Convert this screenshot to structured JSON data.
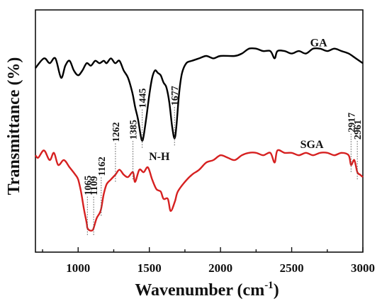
{
  "chart_data": {
    "type": "line",
    "xlabel": "Wavenumber (cm",
    "xlabel_sup": "-1",
    "xlabel_close": ")",
    "ylabel": "Transmittance (%)",
    "xlim": [
      700,
      3000
    ],
    "ylim": [
      0,
      100
    ],
    "y_tick_labels_shown": false,
    "grid": false,
    "xticks": [
      {
        "value": 1000,
        "label": "1000"
      },
      {
        "value": 1500,
        "label": "1500"
      },
      {
        "value": 2000,
        "label": "2000"
      },
      {
        "value": 2500,
        "label": "2500"
      },
      {
        "value": 3000,
        "label": "3000"
      }
    ],
    "series": [
      {
        "name": "GA",
        "color": "#000000",
        "x": [
          700,
          760,
          800,
          840,
          880,
          910,
          940,
          970,
          1000,
          1030,
          1060,
          1090,
          1120,
          1150,
          1180,
          1200,
          1230,
          1260,
          1290,
          1320,
          1350,
          1380,
          1400,
          1420,
          1440,
          1450,
          1460,
          1480,
          1500,
          1520,
          1540,
          1560,
          1580,
          1600,
          1620,
          1640,
          1660,
          1677,
          1690,
          1710,
          1730,
          1760,
          1800,
          1850,
          1900,
          1950,
          2000,
          2100,
          2150,
          2200,
          2250,
          2300,
          2350,
          2380,
          2400,
          2450,
          2500,
          2550,
          2600,
          2650,
          2700,
          2750,
          2800,
          2850,
          2900,
          2950,
          3000
        ],
        "y": [
          76,
          80,
          78,
          80,
          72,
          77,
          79,
          75,
          73,
          75,
          78,
          77,
          79,
          78,
          79,
          78,
          80,
          78,
          79,
          75,
          72,
          66,
          60,
          55,
          48,
          46,
          48,
          56,
          65,
          72,
          75,
          74,
          73,
          70,
          68,
          62,
          52,
          47,
          52,
          66,
          74,
          78,
          79,
          80,
          81,
          80,
          81,
          81,
          82,
          84,
          84,
          83,
          83,
          80,
          83,
          83,
          82,
          83,
          82,
          84,
          84,
          83,
          84,
          83,
          82,
          80,
          78
        ]
      },
      {
        "name": "SGA",
        "color": "#d62020",
        "x": [
          700,
          720,
          760,
          800,
          830,
          860,
          900,
          940,
          980,
          1000,
          1020,
          1040,
          1060,
          1065,
          1080,
          1100,
          1109,
          1130,
          1150,
          1162,
          1180,
          1200,
          1230,
          1262,
          1290,
          1320,
          1350,
          1385,
          1400,
          1430,
          1460,
          1490,
          1520,
          1550,
          1580,
          1600,
          1630,
          1650,
          1680,
          1700,
          1750,
          1800,
          1850,
          1900,
          1950,
          2000,
          2050,
          2100,
          2150,
          2200,
          2250,
          2300,
          2350,
          2380,
          2400,
          2450,
          2500,
          2550,
          2600,
          2650,
          2700,
          2750,
          2800,
          2850,
          2900,
          2917,
          2940,
          2961,
          2980,
          3000
        ],
        "y": [
          40,
          39,
          42,
          38,
          41,
          36,
          38,
          35,
          32,
          30,
          25,
          18,
          12,
          10,
          9,
          9,
          10,
          14,
          16,
          18,
          24,
          28,
          30,
          32,
          34,
          32,
          31,
          33,
          29,
          34,
          33,
          35,
          30,
          26,
          25,
          22,
          22,
          17,
          21,
          25,
          29,
          32,
          34,
          37,
          38,
          40,
          39,
          38,
          40,
          41,
          41,
          40,
          41,
          37,
          42,
          41,
          41,
          40,
          41,
          40,
          41,
          41,
          40,
          41,
          40,
          36,
          38,
          33,
          32,
          31
        ]
      }
    ],
    "series_labels": [
      {
        "text": "GA",
        "x": 2630,
        "y": 85
      },
      {
        "text": "SGA",
        "x": 2560,
        "y": 43
      }
    ],
    "annotations": [
      {
        "text": "1445",
        "x": 1450,
        "series": 0,
        "y_at": 46
      },
      {
        "text": "1677",
        "x": 1677,
        "series": 0,
        "y_at": 47
      },
      {
        "text": "1065",
        "x": 1065,
        "series": 1,
        "y_at": 10
      },
      {
        "text": "1109",
        "x": 1109,
        "series": 1,
        "y_at": 10
      },
      {
        "text": "1162",
        "x": 1162,
        "series": 1,
        "y_at": 18
      },
      {
        "text": "1262",
        "x": 1262,
        "series": 1,
        "y_at": 32
      },
      {
        "text": "1385",
        "x": 1385,
        "series": 1,
        "y_at": 33
      },
      {
        "text": "2917",
        "x": 2917,
        "series": 1,
        "y_at": 36
      },
      {
        "text": "2961",
        "x": 2961,
        "series": 1,
        "y_at": 33
      }
    ],
    "extra_labels": [
      {
        "text": "N-H",
        "x": 1570,
        "y": 38
      }
    ]
  }
}
